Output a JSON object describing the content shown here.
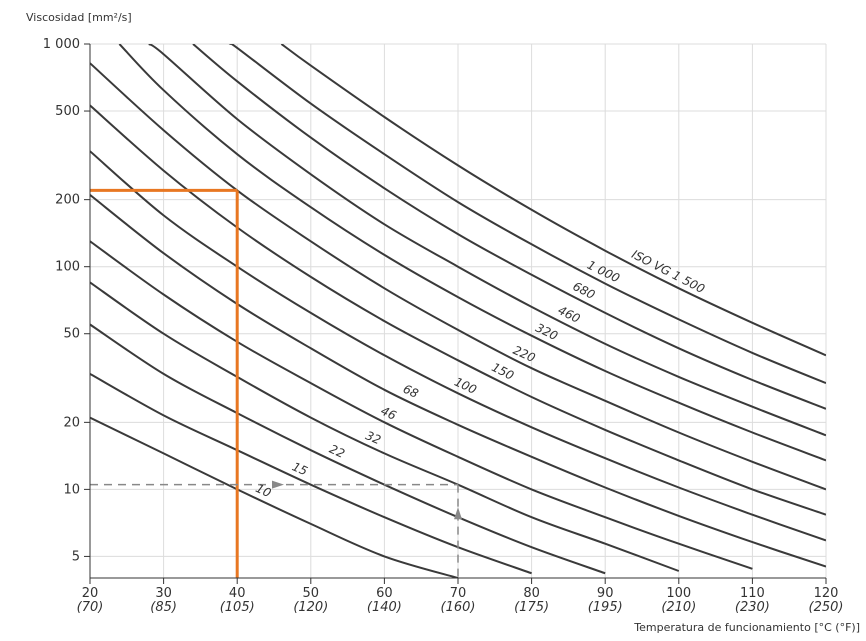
{
  "chart_data": {
    "type": "line",
    "ylabel": "Viscosidad [mm²/s]",
    "xlabel": "Temperatura de funcionamiento [°C (°F)]",
    "y_scale": "log",
    "xlim": [
      20,
      120
    ],
    "ylim": [
      4,
      1000
    ],
    "x_ticks": [
      {
        "c": 20,
        "label": "20",
        "sub": "(70)"
      },
      {
        "c": 30,
        "label": "30",
        "sub": "(85)"
      },
      {
        "c": 40,
        "label": "40",
        "sub": "(105)"
      },
      {
        "c": 50,
        "label": "50",
        "sub": "(120)"
      },
      {
        "c": 60,
        "label": "60",
        "sub": "(140)"
      },
      {
        "c": 70,
        "label": "70",
        "sub": "(160)"
      },
      {
        "c": 80,
        "label": "80",
        "sub": "(175)"
      },
      {
        "c": 90,
        "label": "90",
        "sub": "(195)"
      },
      {
        "c": 100,
        "label": "100",
        "sub": "(210)"
      },
      {
        "c": 110,
        "label": "110",
        "sub": "(230)"
      },
      {
        "c": 120,
        "label": "120",
        "sub": "(250)"
      }
    ],
    "y_ticks": [
      {
        "v": 5,
        "label": "5"
      },
      {
        "v": 10,
        "label": "10"
      },
      {
        "v": 20,
        "label": "20"
      },
      {
        "v": 50,
        "label": "50"
      },
      {
        "v": 100,
        "label": "100"
      },
      {
        "v": 200,
        "label": "200"
      },
      {
        "v": 500,
        "label": "500"
      },
      {
        "v": 1000,
        "label": "1 000"
      }
    ],
    "grid": true,
    "series": [
      {
        "name": "10",
        "label": "10",
        "x": [
          20,
          30,
          40,
          50,
          60,
          70
        ],
        "y": [
          21,
          14.5,
          10,
          7,
          5,
          4
        ]
      },
      {
        "name": "15",
        "label": "15",
        "x": [
          20,
          30,
          40,
          50,
          60,
          70,
          80
        ],
        "y": [
          33,
          21.5,
          15,
          10.5,
          7.5,
          5.5,
          4.2
        ]
      },
      {
        "name": "22",
        "label": "22",
        "x": [
          20,
          30,
          40,
          50,
          60,
          70,
          80,
          90
        ],
        "y": [
          55,
          33,
          22,
          15,
          10.5,
          7.5,
          5.5,
          4.2
        ]
      },
      {
        "name": "32",
        "label": "32",
        "x": [
          20,
          30,
          40,
          50,
          60,
          70,
          80,
          90,
          100
        ],
        "y": [
          85,
          50,
          32,
          21,
          14.5,
          10.5,
          7.5,
          5.7,
          4.3
        ]
      },
      {
        "name": "46",
        "label": "46",
        "x": [
          20,
          30,
          40,
          50,
          60,
          70,
          80,
          90,
          100,
          110
        ],
        "y": [
          130,
          75,
          46,
          30,
          20,
          14,
          10,
          7.5,
          5.7,
          4.4
        ]
      },
      {
        "name": "68",
        "label": "68",
        "x": [
          20,
          30,
          40,
          50,
          60,
          70,
          80,
          90,
          100,
          110,
          120
        ],
        "y": [
          210,
          115,
          68,
          43,
          28,
          19.5,
          14,
          10.2,
          7.6,
          5.8,
          4.5
        ]
      },
      {
        "name": "100",
        "label": "100",
        "x": [
          20,
          30,
          40,
          50,
          60,
          70,
          80,
          90,
          100,
          110,
          120
        ],
        "y": [
          330,
          170,
          100,
          62,
          40,
          27,
          19,
          13.8,
          10.2,
          7.7,
          5.9
        ]
      },
      {
        "name": "150",
        "label": "150",
        "x": [
          20,
          30,
          40,
          50,
          60,
          70,
          80,
          90,
          100,
          110,
          120
        ],
        "y": [
          530,
          270,
          150,
          90,
          57,
          38,
          26,
          18.5,
          13.5,
          10,
          7.7
        ]
      },
      {
        "name": "220",
        "label": "220",
        "x": [
          20,
          30,
          40,
          50,
          60,
          70,
          80,
          90,
          100,
          110,
          120
        ],
        "y": [
          820,
          410,
          220,
          130,
          80,
          52,
          35,
          25,
          18,
          13.3,
          10
        ]
      },
      {
        "name": "320",
        "label": "320",
        "x": [
          24,
          30,
          40,
          50,
          60,
          70,
          80,
          90,
          100,
          110,
          120
        ],
        "y": [
          1000,
          620,
          320,
          185,
          113,
          73,
          49,
          34,
          24.5,
          18,
          13.5
        ]
      },
      {
        "name": "460",
        "label": "460",
        "x": [
          28,
          30,
          40,
          50,
          60,
          70,
          80,
          90,
          100,
          110,
          120
        ],
        "y": [
          1000,
          900,
          460,
          260,
          155,
          100,
          66,
          45,
          32,
          23.5,
          17.5
        ]
      },
      {
        "name": "680",
        "label": "680",
        "x": [
          34,
          40,
          50,
          60,
          70,
          80,
          90,
          100,
          110,
          120
        ],
        "y": [
          1000,
          680,
          380,
          225,
          140,
          92,
          62,
          43,
          31,
          23
        ]
      },
      {
        "name": "1000",
        "label": "1 000",
        "x": [
          39,
          40,
          50,
          60,
          70,
          80,
          90,
          100,
          110,
          120
        ],
        "y": [
          1000,
          960,
          540,
          320,
          195,
          126,
          84,
          58,
          41,
          30
        ]
      },
      {
        "name": "1500",
        "label": "ISO VG 1 500",
        "x": [
          46,
          50,
          60,
          70,
          80,
          90,
          100,
          110,
          120
        ],
        "y": [
          1000,
          800,
          470,
          285,
          180,
          118,
          80,
          56,
          40
        ]
      }
    ],
    "highlight": {
      "x": 40,
      "y": 220,
      "color": "#e87722"
    },
    "example_path": {
      "y": 10.5,
      "x_start": 20,
      "x_end": 70,
      "color": "#888888"
    }
  }
}
